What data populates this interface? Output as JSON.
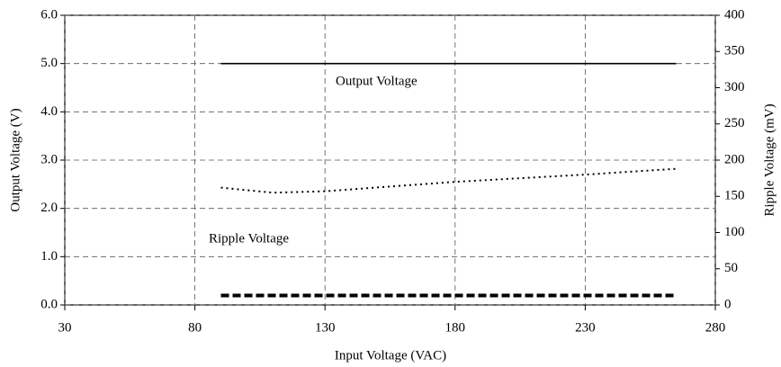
{
  "chart_data": {
    "type": "line",
    "x_label": "Input Voltage (VAC)",
    "y_label": "Output Voltage (V)",
    "y2_label": "Ripple Voltage (mV)",
    "annotations": [
      "Output Voltage",
      "Ripple Voltage"
    ],
    "xlim": [
      30,
      280
    ],
    "xticks": [
      30,
      80,
      130,
      180,
      230,
      280
    ],
    "ylim": [
      0,
      6
    ],
    "yticks": [
      {
        "value": 0,
        "label": "0.0"
      },
      {
        "value": 1,
        "label": "1.0"
      },
      {
        "value": 2,
        "label": "2.0"
      },
      {
        "value": 3,
        "label": "3.0"
      },
      {
        "value": 4,
        "label": "4.0"
      },
      {
        "value": 5,
        "label": "5.0"
      },
      {
        "value": 6,
        "label": "6.0"
      }
    ],
    "y2lim": [
      0,
      400
    ],
    "y2ticks": [
      0,
      50,
      100,
      150,
      200,
      250,
      300,
      350,
      400
    ],
    "grid": true,
    "series": [
      {
        "color": "#000000",
        "style": "solid",
        "x": [
          90,
          265
        ],
        "values": [
          5.0,
          5.0
        ]
      },
      {
        "color": "#000000",
        "style": "dotted",
        "axis": "y2",
        "x": [
          90,
          110,
          130,
          180,
          230,
          265
        ],
        "values": [
          162,
          155,
          157,
          170,
          180,
          188
        ]
      },
      {
        "color": "#000000",
        "style": "dashed",
        "axis": "y2",
        "x": [
          90,
          130,
          180,
          230,
          265
        ],
        "values": [
          13,
          13,
          13,
          13,
          13
        ]
      }
    ]
  }
}
